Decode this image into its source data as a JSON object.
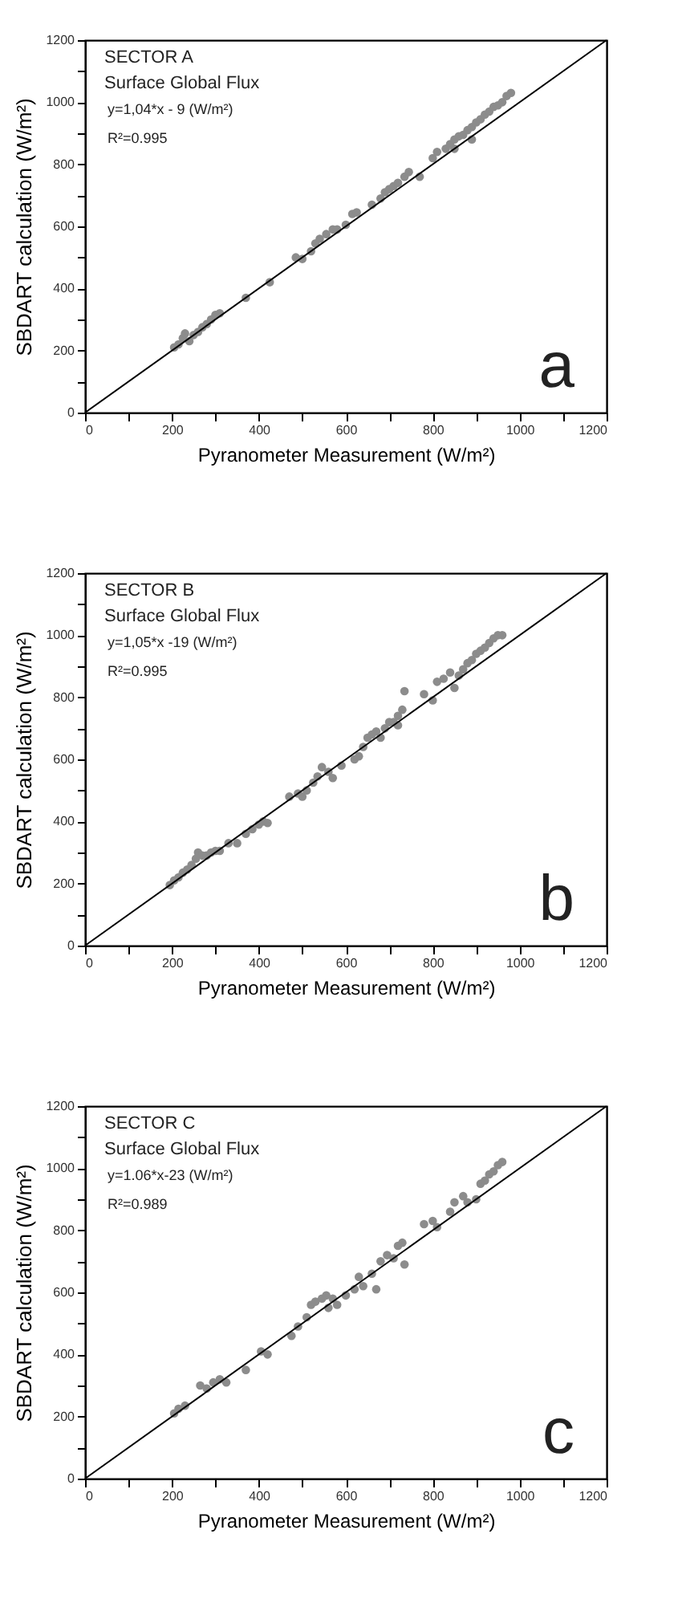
{
  "chart_data": [
    {
      "type": "scatter",
      "xlabel": "Pyranometer Measurement (W/m²)",
      "ylabel": "SBDART calculation (W/m²)",
      "annotations": [
        "SECTOR A",
        "Surface Global Flux",
        "y=1,04*x - 9 (W/m²)",
        "R²=0.995",
        "a"
      ],
      "xlim": [
        0,
        1200
      ],
      "ylim": [
        0,
        1200
      ],
      "xticks": [
        0,
        {
          "value": 100,
          "label": null
        },
        200,
        {
          "value": 300,
          "label": null
        },
        400,
        {
          "value": 500,
          "label": null
        },
        600,
        {
          "value": 700,
          "label": null
        },
        800,
        {
          "value": 900,
          "label": null
        },
        1000,
        {
          "value": 1100,
          "label": null
        },
        1200
      ],
      "yticks": [
        0,
        {
          "value": 100,
          "label": null
        },
        200,
        {
          "value": 300,
          "label": null
        },
        400,
        {
          "value": 500,
          "label": null
        },
        600,
        {
          "value": 700,
          "label": null
        },
        800,
        {
          "value": 900,
          "label": null
        },
        1000,
        {
          "value": 1100,
          "label": null
        },
        1200
      ],
      "series": [
        {
          "color": "#8c8c8c",
          "marker": "circle",
          "x": [
            205,
            215,
            225,
            230,
            240,
            250,
            260,
            270,
            280,
            290,
            300,
            310,
            370,
            425,
            485,
            500,
            520,
            530,
            540,
            555,
            570,
            580,
            600,
            615,
            625,
            660,
            680,
            690,
            700,
            710,
            720,
            735,
            745,
            770,
            800,
            810,
            830,
            840,
            850,
            860,
            870,
            880,
            890,
            900,
            910,
            920,
            930,
            940,
            950,
            960,
            970,
            980,
            890,
            850
          ],
          "values": [
            210,
            220,
            240,
            255,
            230,
            250,
            260,
            275,
            285,
            300,
            315,
            320,
            370,
            420,
            500,
            495,
            520,
            545,
            560,
            575,
            590,
            590,
            605,
            640,
            645,
            670,
            690,
            710,
            720,
            730,
            740,
            760,
            775,
            760,
            820,
            840,
            850,
            865,
            880,
            890,
            895,
            910,
            920,
            935,
            945,
            960,
            970,
            985,
            990,
            1000,
            1020,
            1030,
            880,
            850
          ]
        },
        {
          "type": "line",
          "color": "#000000",
          "x": [
            0,
            1200
          ],
          "values": [
            0,
            1200
          ]
        }
      ]
    },
    {
      "type": "scatter",
      "xlabel": "Pyranometer Measurement (W/m²)",
      "ylabel": "SBDART calculation (W/m²)",
      "annotations": [
        "SECTOR B",
        "Surface Global Flux",
        "y=1,05*x -19 (W/m²)",
        "R²=0.995",
        "b"
      ],
      "xlim": [
        0,
        1200
      ],
      "ylim": [
        0,
        1200
      ],
      "xticks": [
        0,
        {
          "value": 100,
          "label": null
        },
        200,
        {
          "value": 300,
          "label": null
        },
        400,
        {
          "value": 500,
          "label": null
        },
        600,
        {
          "value": 700,
          "label": null
        },
        800,
        {
          "value": 900,
          "label": null
        },
        1000,
        {
          "value": 1100,
          "label": null
        },
        1200
      ],
      "yticks": [
        0,
        {
          "value": 100,
          "label": null
        },
        200,
        {
          "value": 300,
          "label": null
        },
        400,
        {
          "value": 500,
          "label": null
        },
        600,
        {
          "value": 700,
          "label": null
        },
        800,
        {
          "value": 900,
          "label": null
        },
        1000,
        {
          "value": 1100,
          "label": null
        },
        1200
      ],
      "series": [
        {
          "color": "#8c8c8c",
          "marker": "circle",
          "x": [
            195,
            205,
            215,
            225,
            235,
            245,
            255,
            260,
            270,
            280,
            290,
            300,
            310,
            330,
            350,
            370,
            385,
            400,
            410,
            420,
            470,
            490,
            500,
            510,
            525,
            535,
            545,
            560,
            570,
            590,
            620,
            630,
            640,
            650,
            660,
            670,
            680,
            690,
            700,
            710,
            720,
            730,
            735,
            720,
            780,
            800,
            810,
            825,
            840,
            850,
            860,
            870,
            880,
            890,
            900,
            910,
            920,
            930,
            940,
            950,
            960
          ],
          "values": [
            195,
            210,
            220,
            235,
            245,
            260,
            280,
            300,
            290,
            290,
            300,
            305,
            305,
            330,
            330,
            360,
            375,
            390,
            400,
            395,
            480,
            490,
            480,
            500,
            525,
            545,
            575,
            560,
            540,
            580,
            600,
            610,
            640,
            670,
            680,
            690,
            670,
            700,
            720,
            720,
            740,
            760,
            820,
            710,
            810,
            790,
            850,
            860,
            880,
            830,
            870,
            890,
            910,
            920,
            940,
            950,
            960,
            975,
            990,
            1000,
            1000
          ]
        },
        {
          "type": "line",
          "color": "#000000",
          "x": [
            0,
            1200
          ],
          "values": [
            0,
            1200
          ]
        }
      ]
    },
    {
      "type": "scatter",
      "xlabel": "Pyranometer Measurement (W/m²)",
      "ylabel": "SBDART calculation (W/m²)",
      "annotations": [
        "SECTOR C",
        "Surface Global Flux",
        "y=1.06*x-23 (W/m²)",
        "R²=0.989",
        "c"
      ],
      "xlim": [
        0,
        1200
      ],
      "ylim": [
        0,
        1200
      ],
      "xticks": [
        0,
        {
          "value": 100,
          "label": null
        },
        200,
        {
          "value": 300,
          "label": null
        },
        400,
        {
          "value": 500,
          "label": null
        },
        600,
        {
          "value": 700,
          "label": null
        },
        800,
        {
          "value": 900,
          "label": null
        },
        1000,
        {
          "value": 1100,
          "label": null
        },
        1200
      ],
      "yticks": [
        0,
        {
          "value": 100,
          "label": null
        },
        200,
        {
          "value": 300,
          "label": null
        },
        400,
        {
          "value": 500,
          "label": null
        },
        600,
        {
          "value": 700,
          "label": null
        },
        800,
        {
          "value": 900,
          "label": null
        },
        1000,
        {
          "value": 1100,
          "label": null
        },
        1200
      ],
      "series": [
        {
          "color": "#8c8c8c",
          "marker": "circle",
          "x": [
            205,
            215,
            230,
            265,
            280,
            295,
            310,
            325,
            370,
            405,
            420,
            475,
            490,
            510,
            520,
            530,
            545,
            555,
            560,
            570,
            580,
            600,
            620,
            630,
            640,
            660,
            670,
            680,
            695,
            710,
            720,
            730,
            735,
            780,
            800,
            810,
            840,
            850,
            870,
            880,
            900,
            910,
            920,
            930,
            940,
            950,
            960
          ],
          "values": [
            210,
            225,
            235,
            300,
            290,
            310,
            320,
            310,
            350,
            410,
            400,
            460,
            490,
            520,
            560,
            570,
            580,
            590,
            550,
            580,
            560,
            590,
            610,
            650,
            620,
            660,
            610,
            700,
            720,
            710,
            750,
            760,
            690,
            820,
            830,
            810,
            860,
            890,
            910,
            890,
            900,
            950,
            960,
            980,
            990,
            1010,
            1020
          ]
        },
        {
          "type": "line",
          "color": "#000000",
          "x": [
            0,
            1200
          ],
          "values": [
            0,
            1200
          ]
        }
      ]
    }
  ]
}
